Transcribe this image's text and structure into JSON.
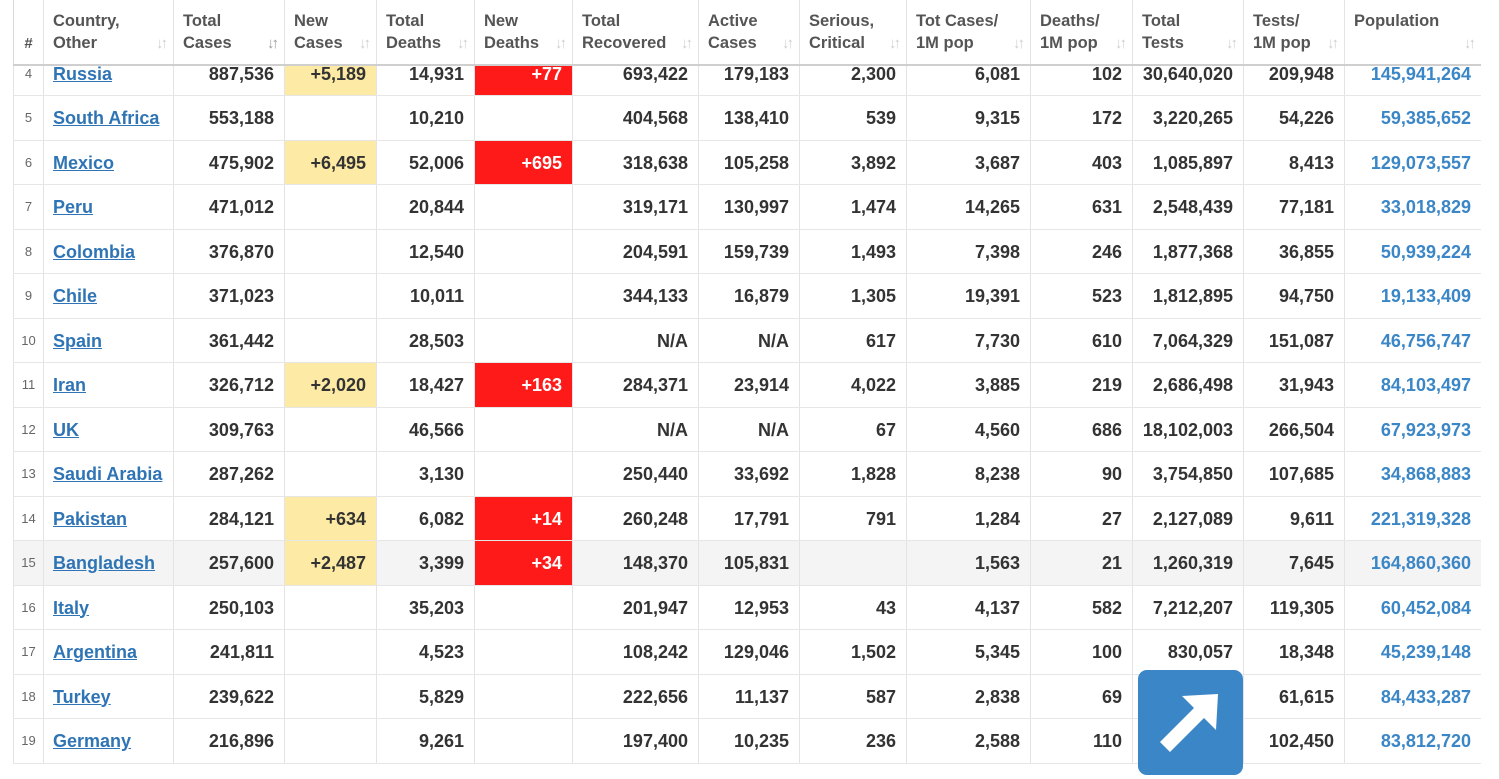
{
  "columns": [
    {
      "key": "idx",
      "label": "#",
      "sortable": false
    },
    {
      "key": "country",
      "label": "Country,\nOther",
      "sortable": true
    },
    {
      "key": "total_cases",
      "label": "Total\nCases",
      "sortable": true,
      "active_sort": true
    },
    {
      "key": "new_cases",
      "label": "New\nCases",
      "sortable": true
    },
    {
      "key": "total_deaths",
      "label": "Total\nDeaths",
      "sortable": true
    },
    {
      "key": "new_deaths",
      "label": "New\nDeaths",
      "sortable": true
    },
    {
      "key": "total_recovered",
      "label": "Total\nRecovered",
      "sortable": true
    },
    {
      "key": "active_cases",
      "label": "Active\nCases",
      "sortable": true
    },
    {
      "key": "serious_critical",
      "label": "Serious,\nCritical",
      "sortable": true
    },
    {
      "key": "cases_per_1m",
      "label": "Tot Cases/\n1M pop",
      "sortable": true
    },
    {
      "key": "deaths_per_1m",
      "label": "Deaths/\n1M pop",
      "sortable": true
    },
    {
      "key": "total_tests",
      "label": "Total\nTests",
      "sortable": true
    },
    {
      "key": "tests_per_1m",
      "label": "Tests/\n1M pop",
      "sortable": true
    },
    {
      "key": "population",
      "label": "Population",
      "sortable": true
    }
  ],
  "sort_glyph": "↓↑",
  "rows": [
    {
      "idx": "4",
      "country": "Russia",
      "total_cases": "887,536",
      "new_cases": "+5,189",
      "total_deaths": "14,931",
      "new_deaths": "+77",
      "total_recovered": "693,422",
      "active_cases": "179,183",
      "serious_critical": "2,300",
      "cases_per_1m": "6,081",
      "deaths_per_1m": "102",
      "total_tests": "30,640,020",
      "tests_per_1m": "209,948",
      "population": "145,941,264"
    },
    {
      "idx": "5",
      "country": "South Africa",
      "total_cases": "553,188",
      "new_cases": "",
      "total_deaths": "10,210",
      "new_deaths": "",
      "total_recovered": "404,568",
      "active_cases": "138,410",
      "serious_critical": "539",
      "cases_per_1m": "9,315",
      "deaths_per_1m": "172",
      "total_tests": "3,220,265",
      "tests_per_1m": "54,226",
      "population": "59,385,652"
    },
    {
      "idx": "6",
      "country": "Mexico",
      "total_cases": "475,902",
      "new_cases": "+6,495",
      "total_deaths": "52,006",
      "new_deaths": "+695",
      "total_recovered": "318,638",
      "active_cases": "105,258",
      "serious_critical": "3,892",
      "cases_per_1m": "3,687",
      "deaths_per_1m": "403",
      "total_tests": "1,085,897",
      "tests_per_1m": "8,413",
      "population": "129,073,557"
    },
    {
      "idx": "7",
      "country": "Peru",
      "total_cases": "471,012",
      "new_cases": "",
      "total_deaths": "20,844",
      "new_deaths": "",
      "total_recovered": "319,171",
      "active_cases": "130,997",
      "serious_critical": "1,474",
      "cases_per_1m": "14,265",
      "deaths_per_1m": "631",
      "total_tests": "2,548,439",
      "tests_per_1m": "77,181",
      "population": "33,018,829"
    },
    {
      "idx": "8",
      "country": "Colombia",
      "total_cases": "376,870",
      "new_cases": "",
      "total_deaths": "12,540",
      "new_deaths": "",
      "total_recovered": "204,591",
      "active_cases": "159,739",
      "serious_critical": "1,493",
      "cases_per_1m": "7,398",
      "deaths_per_1m": "246",
      "total_tests": "1,877,368",
      "tests_per_1m": "36,855",
      "population": "50,939,224"
    },
    {
      "idx": "9",
      "country": "Chile",
      "total_cases": "371,023",
      "new_cases": "",
      "total_deaths": "10,011",
      "new_deaths": "",
      "total_recovered": "344,133",
      "active_cases": "16,879",
      "serious_critical": "1,305",
      "cases_per_1m": "19,391",
      "deaths_per_1m": "523",
      "total_tests": "1,812,895",
      "tests_per_1m": "94,750",
      "population": "19,133,409"
    },
    {
      "idx": "10",
      "country": "Spain",
      "total_cases": "361,442",
      "new_cases": "",
      "total_deaths": "28,503",
      "new_deaths": "",
      "total_recovered": "N/A",
      "active_cases": "N/A",
      "serious_critical": "617",
      "cases_per_1m": "7,730",
      "deaths_per_1m": "610",
      "total_tests": "7,064,329",
      "tests_per_1m": "151,087",
      "population": "46,756,747"
    },
    {
      "idx": "11",
      "country": "Iran",
      "total_cases": "326,712",
      "new_cases": "+2,020",
      "total_deaths": "18,427",
      "new_deaths": "+163",
      "total_recovered": "284,371",
      "active_cases": "23,914",
      "serious_critical": "4,022",
      "cases_per_1m": "3,885",
      "deaths_per_1m": "219",
      "total_tests": "2,686,498",
      "tests_per_1m": "31,943",
      "population": "84,103,497"
    },
    {
      "idx": "12",
      "country": "UK",
      "total_cases": "309,763",
      "new_cases": "",
      "total_deaths": "46,566",
      "new_deaths": "",
      "total_recovered": "N/A",
      "active_cases": "N/A",
      "serious_critical": "67",
      "cases_per_1m": "4,560",
      "deaths_per_1m": "686",
      "total_tests": "18,102,003",
      "tests_per_1m": "266,504",
      "population": "67,923,973"
    },
    {
      "idx": "13",
      "country": "Saudi Arabia",
      "total_cases": "287,262",
      "new_cases": "",
      "total_deaths": "3,130",
      "new_deaths": "",
      "total_recovered": "250,440",
      "active_cases": "33,692",
      "serious_critical": "1,828",
      "cases_per_1m": "8,238",
      "deaths_per_1m": "90",
      "total_tests": "3,754,850",
      "tests_per_1m": "107,685",
      "population": "34,868,883"
    },
    {
      "idx": "14",
      "country": "Pakistan",
      "total_cases": "284,121",
      "new_cases": "+634",
      "total_deaths": "6,082",
      "new_deaths": "+14",
      "total_recovered": "260,248",
      "active_cases": "17,791",
      "serious_critical": "791",
      "cases_per_1m": "1,284",
      "deaths_per_1m": "27",
      "total_tests": "2,127,089",
      "tests_per_1m": "9,611",
      "population": "221,319,328"
    },
    {
      "idx": "15",
      "country": "Bangladesh",
      "total_cases": "257,600",
      "new_cases": "+2,487",
      "total_deaths": "3,399",
      "new_deaths": "+34",
      "total_recovered": "148,370",
      "active_cases": "105,831",
      "serious_critical": "",
      "cases_per_1m": "1,563",
      "deaths_per_1m": "21",
      "total_tests": "1,260,319",
      "tests_per_1m": "7,645",
      "population": "164,860,360",
      "highlighted": true
    },
    {
      "idx": "16",
      "country": "Italy",
      "total_cases": "250,103",
      "new_cases": "",
      "total_deaths": "35,203",
      "new_deaths": "",
      "total_recovered": "201,947",
      "active_cases": "12,953",
      "serious_critical": "43",
      "cases_per_1m": "4,137",
      "deaths_per_1m": "582",
      "total_tests": "7,212,207",
      "tests_per_1m": "119,305",
      "population": "60,452,084"
    },
    {
      "idx": "17",
      "country": "Argentina",
      "total_cases": "241,811",
      "new_cases": "",
      "total_deaths": "4,523",
      "new_deaths": "",
      "total_recovered": "108,242",
      "active_cases": "129,046",
      "serious_critical": "1,502",
      "cases_per_1m": "5,345",
      "deaths_per_1m": "100",
      "total_tests": "830,057",
      "tests_per_1m": "18,348",
      "population": "45,239,148"
    },
    {
      "idx": "18",
      "country": "Turkey",
      "total_cases": "239,622",
      "new_cases": "",
      "total_deaths": "5,829",
      "new_deaths": "",
      "total_recovered": "222,656",
      "active_cases": "11,137",
      "serious_critical": "587",
      "cases_per_1m": "2,838",
      "deaths_per_1m": "69",
      "total_tests": "",
      "tests_per_1m": "61,615",
      "population": "84,433,287"
    },
    {
      "idx": "19",
      "country": "Germany",
      "total_cases": "216,896",
      "new_cases": "",
      "total_deaths": "9,261",
      "new_deaths": "",
      "total_recovered": "197,400",
      "active_cases": "10,235",
      "serious_critical": "236",
      "cases_per_1m": "2,588",
      "deaths_per_1m": "110",
      "total_tests": "",
      "tests_per_1m": "102,450",
      "population": "83,812,720"
    }
  ],
  "share_button": {
    "icon": "arrow-up-right-icon",
    "color": "#3a86c6"
  }
}
